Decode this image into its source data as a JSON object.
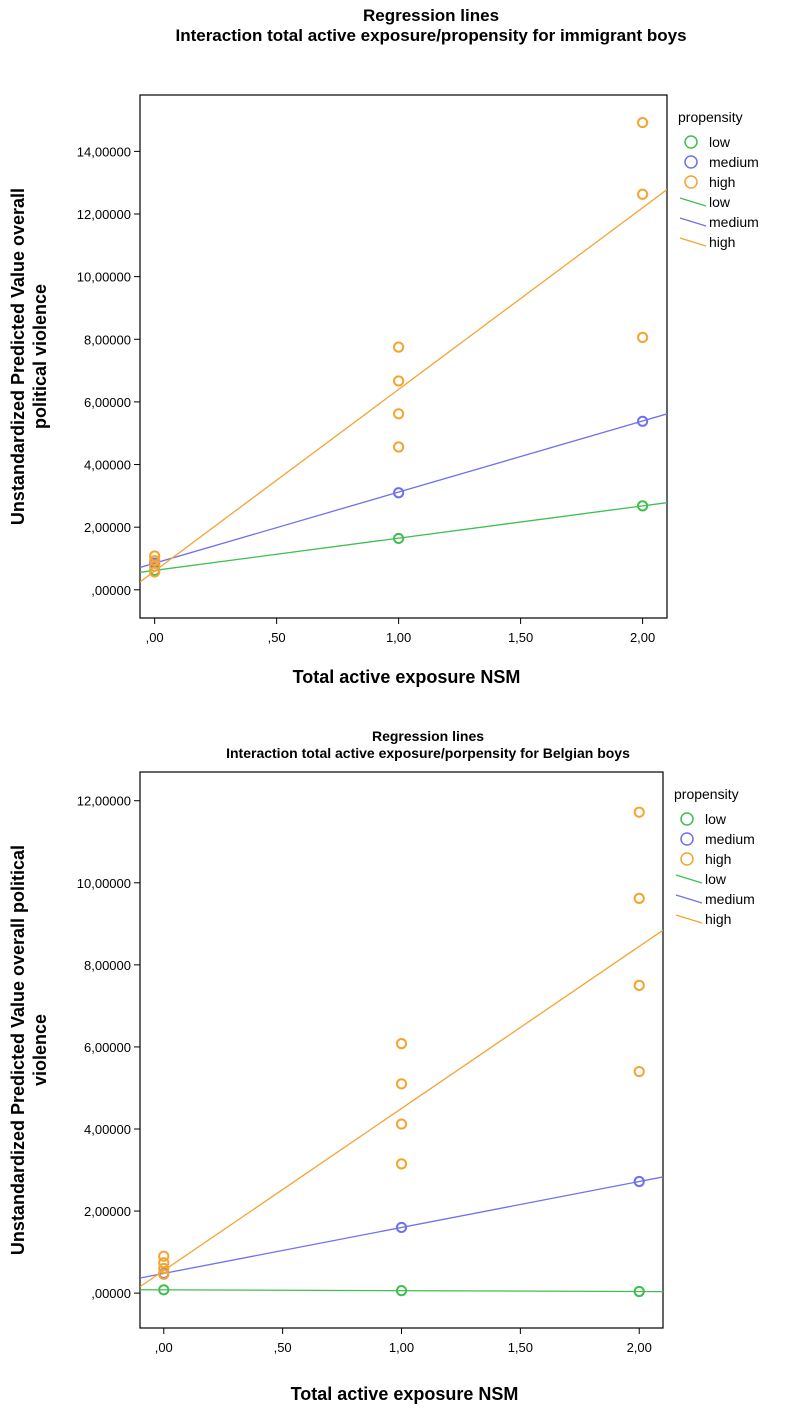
{
  "chart_data": [
    {
      "type": "scatter",
      "title": "Regression lines",
      "subtitle": "Interaction total active exposure/propensity for immigrant boys",
      "xlabel": "Total active exposure NSM",
      "ylabel": "Unstandardized Predicted Value overall political  violence",
      "ylabel_lines": [
        "Unstandardized Predicted Value overall",
        "political  violence"
      ],
      "xlim": [
        -0.06,
        2.1
      ],
      "ylim": [
        -0.9,
        15.8
      ],
      "x_ticks": [
        0,
        0.5,
        1,
        1.5,
        2
      ],
      "x_tick_labels": [
        ",00",
        ",50",
        "1,00",
        "1,50",
        "2,00"
      ],
      "y_ticks": [
        0,
        2,
        4,
        6,
        8,
        10,
        12,
        14
      ],
      "y_tick_labels": [
        ",00000",
        "2,00000",
        "4,00000",
        "6,00000",
        "8,00000",
        "10,00000",
        "12,00000",
        "14,00000"
      ],
      "legend_title": "propensity",
      "legend_placement": "right",
      "series": [
        {
          "name": "low",
          "color": "#3fbf4f",
          "points": [
            [
              0,
              0.62
            ],
            [
              1,
              1.64
            ],
            [
              2,
              2.68
            ]
          ],
          "line": {
            "intercept": 0.62,
            "slope": 1.03
          }
        },
        {
          "name": "medium",
          "color": "#6f70ef",
          "points": [
            [
              0,
              0.85
            ],
            [
              1,
              3.1
            ],
            [
              2,
              5.38
            ]
          ],
          "line": {
            "intercept": 0.85,
            "slope": 2.27
          }
        },
        {
          "name": "high",
          "color": "#f5a431",
          "points": [
            [
              0,
              0.57
            ],
            [
              0,
              0.75
            ],
            [
              0,
              0.93
            ],
            [
              0,
              1.08
            ],
            [
              1,
              4.56
            ],
            [
              1,
              5.62
            ],
            [
              1,
              6.67
            ],
            [
              1,
              7.75
            ],
            [
              2,
              8.06
            ],
            [
              2,
              12.63
            ],
            [
              2,
              14.92
            ]
          ],
          "line": {
            "intercept": 0.6,
            "slope": 5.8
          }
        }
      ]
    },
    {
      "type": "scatter",
      "title": "Regression lines",
      "subtitle": "Interaction total active exposure/porpensity for Belgian boys",
      "xlabel": "Total active exposure NSM",
      "ylabel": "Unstandardized Predicted Value overall political violence",
      "ylabel_lines": [
        "Unstandardized Predicted Value overall political",
        "violence"
      ],
      "xlim": [
        -0.1,
        2.1
      ],
      "ylim": [
        -0.85,
        12.7
      ],
      "x_ticks": [
        0,
        0.5,
        1,
        1.5,
        2
      ],
      "x_tick_labels": [
        ",00",
        ",50",
        "1,00",
        "1,50",
        "2,00"
      ],
      "y_ticks": [
        0,
        2,
        4,
        6,
        8,
        10,
        12
      ],
      "y_tick_labels": [
        ",00000",
        "2,00000",
        "4,00000",
        "6,00000",
        "8,00000",
        "10,00000",
        "12,00000"
      ],
      "legend_title": "propensity",
      "legend_placement": "right",
      "series": [
        {
          "name": "low",
          "color": "#3fbf4f",
          "points": [
            [
              0,
              0.08
            ],
            [
              1,
              0.06
            ],
            [
              2,
              0.04
            ]
          ],
          "line": {
            "intercept": 0.08,
            "slope": -0.02
          }
        },
        {
          "name": "medium",
          "color": "#6f70ef",
          "points": [
            [
              0,
              0.48
            ],
            [
              1,
              1.6
            ],
            [
              2,
              2.72
            ]
          ],
          "line": {
            "intercept": 0.48,
            "slope": 1.12
          }
        },
        {
          "name": "high",
          "color": "#f5a431",
          "points": [
            [
              0,
              0.46
            ],
            [
              0,
              0.6
            ],
            [
              0,
              0.74
            ],
            [
              0,
              0.9
            ],
            [
              1,
              3.15
            ],
            [
              1,
              4.12
            ],
            [
              1,
              5.1
            ],
            [
              1,
              6.08
            ],
            [
              2,
              5.4
            ],
            [
              2,
              7.5
            ],
            [
              2,
              9.62
            ],
            [
              2,
              11.72
            ]
          ],
          "line": {
            "intercept": 0.55,
            "slope": 3.95
          }
        }
      ]
    }
  ]
}
